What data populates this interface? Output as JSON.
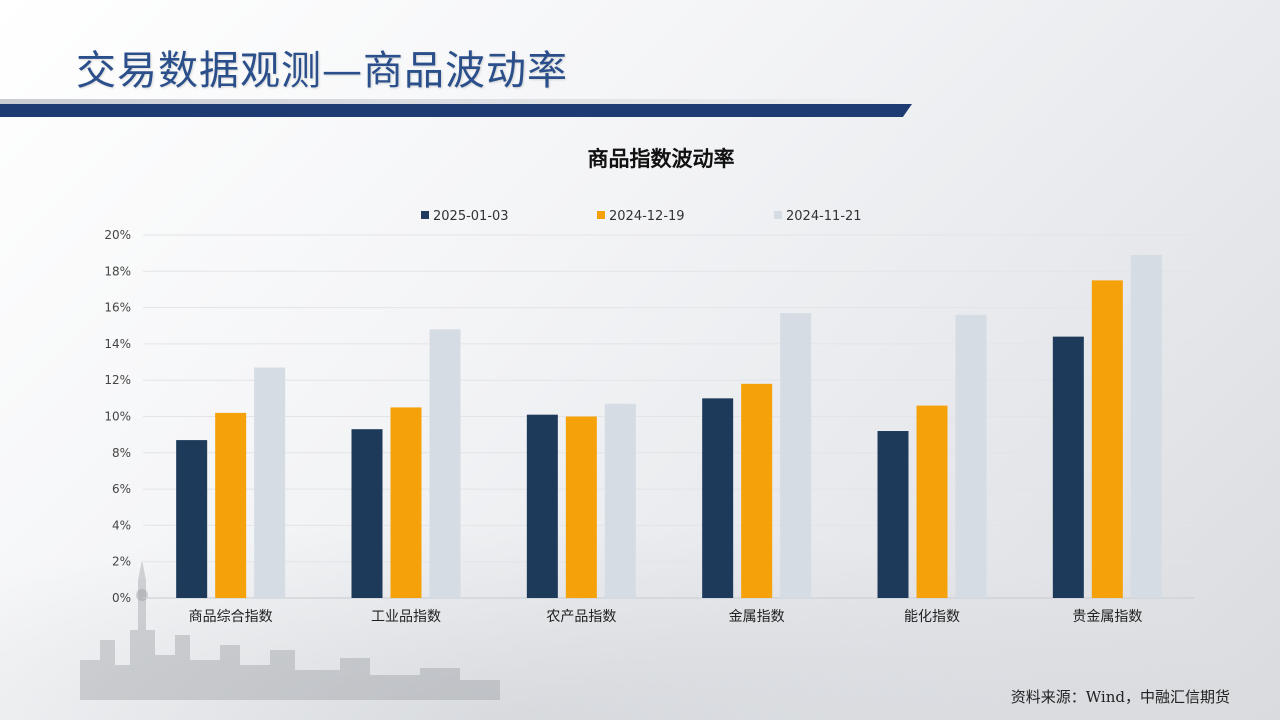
{
  "page": {
    "title": "交易数据观测—商品波动率",
    "source": "资料来源：Wind，中融汇信期货"
  },
  "colors": {
    "title": "#2b4f8a",
    "title_bar": "#1f3b73",
    "series": [
      "#1e3a5a",
      "#f5a20a",
      "#d6dce4"
    ]
  },
  "chart_data": {
    "type": "bar",
    "title": "商品指数波动率",
    "categories": [
      "商品综合指数",
      "工业品指数",
      "农产品指数",
      "金属指数",
      "能化指数",
      "贵金属指数"
    ],
    "series": [
      {
        "name": "2025-01-03",
        "values": [
          8.7,
          9.3,
          10.1,
          11.0,
          9.2,
          14.4
        ]
      },
      {
        "name": "2024-12-19",
        "values": [
          10.2,
          10.5,
          10.0,
          11.8,
          10.6,
          17.5
        ]
      },
      {
        "name": "2024-11-21",
        "values": [
          12.7,
          14.8,
          10.7,
          15.7,
          15.6,
          18.9
        ]
      }
    ],
    "ylim": [
      0,
      20
    ],
    "yticks": [
      "0%",
      "2%",
      "4%",
      "6%",
      "8%",
      "10%",
      "12%",
      "14%",
      "16%",
      "18%",
      "20%"
    ],
    "grid": true,
    "legend": "top"
  }
}
